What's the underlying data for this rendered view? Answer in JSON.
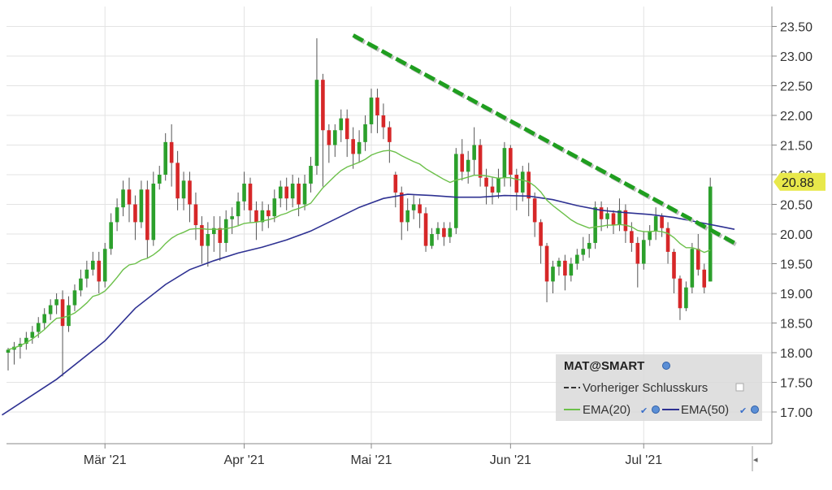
{
  "chart_data": {
    "type": "candlestick",
    "symbol": "MAT@SMART",
    "y_ticks": [
      "17.00",
      "17.50",
      "18.00",
      "18.50",
      "19.00",
      "19.50",
      "20.00",
      "20.50",
      "21.00",
      "21.50",
      "22.00",
      "22.50",
      "23.00",
      "23.50"
    ],
    "ylim": [
      16.5,
      23.7
    ],
    "months": [
      {
        "label": "Mär '21",
        "index": 16
      },
      {
        "label": "Apr '21",
        "index": 39
      },
      {
        "label": "Mai '21",
        "index": 60
      },
      {
        "label": "Jun '21",
        "index": 83
      },
      {
        "label": "Jul '21",
        "index": 105
      }
    ],
    "last_price": "20.88",
    "last_price_value": 20.88,
    "legend": {
      "title": "MAT@SMART",
      "items": [
        {
          "label": "Vorheriger Schlusskurs"
        },
        {
          "label": "EMA(20)"
        },
        {
          "label": "EMA(50)"
        }
      ]
    },
    "colors": {
      "up": "#2ca02c",
      "down": "#d62728",
      "ema20": "#6cc04a",
      "ema50": "#2e3192",
      "trendline": "#1f9e1f",
      "last_price_bg": "#e8e84a",
      "legend_bg": "#d9d9d9"
    },
    "trendline": {
      "from": {
        "index": 57,
        "value": 23.35
      },
      "to": {
        "index": 120,
        "value": 19.85
      }
    },
    "candles": [
      [
        18.0,
        18.05,
        17.7,
        18.08
      ],
      [
        18.05,
        18.1,
        17.8,
        18.18
      ],
      [
        18.1,
        18.15,
        17.9,
        18.25
      ],
      [
        18.15,
        18.25,
        18.05,
        18.35
      ],
      [
        18.25,
        18.35,
        18.15,
        18.45
      ],
      [
        18.35,
        18.5,
        18.25,
        18.6
      ],
      [
        18.5,
        18.65,
        18.4,
        18.75
      ],
      [
        18.65,
        18.8,
        18.55,
        18.9
      ],
      [
        18.8,
        18.9,
        18.65,
        19.0
      ],
      [
        18.9,
        18.45,
        17.6,
        19.05
      ],
      [
        18.45,
        18.8,
        18.35,
        18.95
      ],
      [
        18.8,
        19.05,
        18.7,
        19.15
      ],
      [
        19.05,
        19.25,
        18.95,
        19.4
      ],
      [
        19.25,
        19.4,
        19.1,
        19.55
      ],
      [
        19.4,
        19.55,
        19.3,
        19.7
      ],
      [
        19.55,
        19.2,
        19.0,
        19.7
      ],
      [
        19.2,
        19.75,
        19.1,
        19.85
      ],
      [
        19.75,
        20.2,
        19.65,
        20.35
      ],
      [
        20.2,
        20.45,
        20.05,
        20.6
      ],
      [
        20.45,
        20.75,
        20.3,
        20.9
      ],
      [
        20.75,
        20.5,
        20.2,
        20.95
      ],
      [
        20.5,
        20.2,
        19.9,
        20.65
      ],
      [
        20.2,
        20.75,
        20.1,
        20.9
      ],
      [
        20.75,
        19.9,
        19.6,
        20.9
      ],
      [
        19.9,
        20.85,
        19.8,
        21.05
      ],
      [
        20.85,
        21.0,
        20.75,
        21.15
      ],
      [
        21.0,
        21.55,
        20.9,
        21.7
      ],
      [
        21.55,
        21.2,
        20.8,
        21.85
      ],
      [
        21.2,
        20.6,
        20.4,
        21.4
      ],
      [
        20.6,
        20.9,
        20.4,
        21.05
      ],
      [
        20.9,
        20.5,
        20.2,
        21.05
      ],
      [
        20.5,
        20.15,
        19.9,
        20.7
      ],
      [
        20.15,
        19.8,
        19.5,
        20.3
      ],
      [
        19.8,
        20.0,
        19.45,
        20.2
      ],
      [
        20.0,
        20.1,
        19.7,
        20.3
      ],
      [
        20.1,
        19.85,
        19.55,
        20.3
      ],
      [
        19.85,
        20.25,
        19.7,
        20.4
      ],
      [
        20.25,
        20.3,
        20.0,
        20.45
      ],
      [
        20.3,
        20.55,
        20.15,
        20.7
      ],
      [
        20.55,
        20.85,
        20.4,
        21.05
      ],
      [
        20.85,
        20.4,
        20.2,
        20.95
      ],
      [
        20.4,
        20.2,
        19.9,
        20.55
      ],
      [
        20.2,
        20.4,
        20.05,
        20.55
      ],
      [
        20.4,
        20.3,
        20.1,
        20.5
      ],
      [
        20.3,
        20.6,
        20.2,
        20.75
      ],
      [
        20.6,
        20.8,
        20.45,
        20.9
      ],
      [
        20.8,
        20.6,
        20.4,
        20.95
      ],
      [
        20.6,
        20.85,
        20.45,
        21.0
      ],
      [
        20.85,
        20.5,
        20.3,
        20.95
      ],
      [
        20.5,
        20.85,
        20.4,
        21.0
      ],
      [
        20.85,
        21.15,
        20.7,
        21.3
      ],
      [
        21.15,
        22.6,
        21.0,
        23.3
      ],
      [
        22.6,
        21.75,
        20.8,
        22.7
      ],
      [
        21.75,
        21.5,
        21.2,
        21.85
      ],
      [
        21.5,
        21.75,
        21.3,
        21.85
      ],
      [
        21.75,
        21.95,
        21.55,
        22.1
      ],
      [
        21.95,
        21.6,
        21.3,
        22.1
      ],
      [
        21.6,
        21.35,
        21.1,
        21.8
      ],
      [
        21.35,
        21.55,
        21.2,
        21.75
      ],
      [
        21.55,
        21.85,
        21.4,
        22.0
      ],
      [
        21.85,
        22.3,
        21.7,
        22.45
      ],
      [
        22.3,
        22.0,
        21.7,
        22.45
      ],
      [
        22.0,
        21.8,
        21.6,
        22.2
      ],
      [
        21.8,
        21.55,
        21.2,
        21.9
      ],
      [
        21.0,
        20.7,
        20.45,
        21.05
      ],
      [
        20.7,
        20.2,
        19.9,
        20.8
      ],
      [
        20.2,
        20.4,
        20.05,
        20.6
      ],
      [
        20.4,
        20.5,
        20.25,
        20.65
      ],
      [
        20.5,
        20.35,
        20.1,
        20.6
      ],
      [
        20.35,
        19.8,
        19.7,
        20.45
      ],
      [
        19.8,
        20.0,
        19.75,
        20.1
      ],
      [
        20.0,
        20.1,
        19.9,
        20.2
      ],
      [
        20.1,
        19.95,
        19.8,
        20.2
      ],
      [
        19.95,
        20.1,
        19.85,
        20.2
      ],
      [
        20.1,
        21.35,
        20.0,
        21.45
      ],
      [
        21.35,
        21.05,
        20.9,
        21.6
      ],
      [
        21.05,
        21.25,
        20.85,
        21.4
      ],
      [
        21.25,
        21.5,
        21.0,
        21.8
      ],
      [
        21.5,
        20.95,
        20.8,
        21.6
      ],
      [
        20.95,
        20.8,
        20.5,
        21.1
      ],
      [
        20.8,
        20.7,
        20.5,
        20.95
      ],
      [
        20.7,
        20.95,
        20.6,
        21.1
      ],
      [
        20.95,
        21.45,
        20.8,
        21.55
      ],
      [
        21.45,
        21.0,
        20.8,
        21.5
      ],
      [
        21.0,
        20.7,
        20.4,
        21.1
      ],
      [
        20.7,
        21.05,
        20.55,
        21.15
      ],
      [
        21.05,
        20.6,
        20.3,
        21.2
      ],
      [
        20.6,
        20.2,
        19.95,
        20.7
      ],
      [
        20.2,
        19.8,
        19.5,
        20.25
      ],
      [
        19.8,
        19.2,
        18.85,
        19.85
      ],
      [
        19.2,
        19.45,
        19.0,
        19.55
      ],
      [
        19.45,
        19.55,
        19.3,
        19.6
      ],
      [
        19.55,
        19.3,
        19.05,
        19.65
      ],
      [
        19.3,
        19.5,
        19.2,
        19.6
      ],
      [
        19.5,
        19.65,
        19.4,
        19.75
      ],
      [
        19.65,
        19.75,
        19.55,
        19.95
      ],
      [
        19.75,
        19.85,
        19.6,
        20.0
      ],
      [
        19.85,
        20.45,
        19.75,
        20.55
      ],
      [
        20.45,
        20.25,
        20.05,
        20.55
      ],
      [
        20.25,
        20.35,
        20.1,
        20.45
      ],
      [
        20.35,
        20.15,
        20.0,
        20.4
      ],
      [
        20.15,
        20.4,
        20.05,
        20.6
      ],
      [
        20.4,
        20.05,
        19.85,
        20.5
      ],
      [
        20.05,
        19.85,
        19.7,
        20.2
      ],
      [
        19.85,
        19.5,
        19.1,
        19.95
      ],
      [
        19.5,
        19.9,
        19.4,
        20.05
      ],
      [
        19.9,
        20.05,
        19.8,
        20.15
      ],
      [
        20.05,
        20.3,
        19.9,
        20.45
      ],
      [
        20.3,
        20.1,
        19.95,
        20.35
      ],
      [
        20.1,
        19.7,
        19.5,
        20.2
      ],
      [
        19.7,
        19.25,
        19.0,
        19.75
      ],
      [
        19.25,
        18.75,
        18.55,
        19.3
      ],
      [
        18.75,
        19.1,
        18.7,
        19.2
      ],
      [
        19.1,
        19.75,
        19.0,
        19.85
      ],
      [
        19.75,
        19.4,
        19.3,
        20.0
      ],
      [
        19.4,
        19.1,
        19.0,
        19.5
      ],
      [
        19.2,
        20.8,
        19.2,
        20.95
      ]
    ],
    "ema20": [
      18.05,
      18.08,
      18.12,
      18.17,
      18.23,
      18.31,
      18.39,
      18.49,
      18.58,
      18.59,
      18.62,
      18.67,
      18.75,
      18.84,
      18.95,
      18.98,
      19.04,
      19.15,
      19.27,
      19.4,
      19.48,
      19.5,
      19.56,
      19.59,
      19.65,
      19.73,
      19.84,
      19.93,
      19.99,
      20.03,
      20.08,
      20.09,
      20.09,
      20.08,
      20.08,
      20.08,
      20.09,
      20.11,
      20.14,
      20.18,
      20.19,
      20.2,
      20.22,
      20.24,
      20.27,
      20.32,
      20.35,
      20.4,
      20.43,
      20.47,
      20.52,
      20.65,
      20.78,
      20.88,
      20.98,
      21.07,
      21.13,
      21.17,
      21.21,
      21.26,
      21.33,
      21.37,
      21.4,
      21.41,
      21.38,
      21.32,
      21.27,
      21.22,
      21.18,
      21.1,
      21.04,
      20.98,
      20.92,
      20.87,
      20.91,
      20.93,
      20.96,
      20.99,
      20.99,
      20.98,
      20.96,
      20.94,
      20.95,
      20.95,
      20.92,
      20.91,
      20.88,
      20.81,
      20.71,
      20.57,
      20.48,
      20.4,
      20.32,
      20.24,
      20.18,
      20.14,
      20.1,
      20.12,
      20.13,
      20.15,
      20.15,
      20.16,
      20.15,
      20.12,
      20.06,
      20.04,
      20.04,
      20.05,
      20.04,
      20.01,
      19.94,
      19.84,
      19.77,
      19.77,
      19.74,
      19.69,
      19.73
    ]
  }
}
